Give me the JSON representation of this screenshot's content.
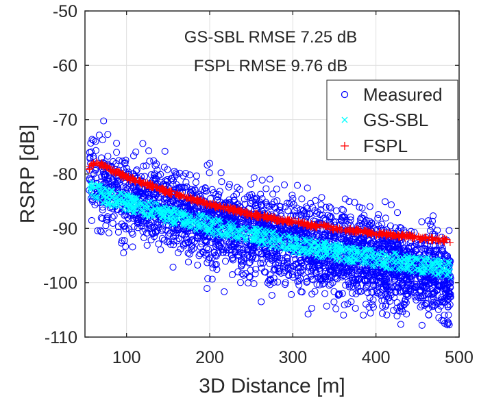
{
  "chart_data": {
    "type": "scatter",
    "title": "",
    "xlabel": "3D Distance [m]",
    "ylabel": "RSRP [dB]",
    "xlim": [
      50,
      500
    ],
    "ylim": [
      -110,
      -50
    ],
    "xticks": [
      100,
      200,
      300,
      400,
      500
    ],
    "yticks": [
      -110,
      -100,
      -90,
      -80,
      -70,
      -60,
      -50
    ],
    "xtick_labels": [
      "100",
      "200",
      "300",
      "400",
      "500"
    ],
    "ytick_labels": [
      "-110",
      "-100",
      "-90",
      "-80",
      "-70",
      "-60",
      "-50"
    ],
    "grid": true,
    "legend_position": "top-right",
    "annotations": [
      "GS-SBL RMSE 7.25 dB",
      "FSPL RMSE 9.76 dB"
    ],
    "series": [
      {
        "name": "Measured",
        "marker": "circle",
        "color": "#0000ff",
        "point_count": 3000,
        "trend": {
          "x": [
            55,
            100,
            200,
            300,
            400,
            490
          ],
          "mean_y": [
            -80.5,
            -84.5,
            -88.5,
            -92.5,
            -96,
            -99
          ],
          "spread_db": 8.5
        }
      },
      {
        "name": "GS-SBL",
        "marker": "x",
        "color": "#00ffff",
        "x": [
          55,
          80,
          100,
          150,
          200,
          250,
          300,
          350,
          400,
          450,
          490
        ],
        "y": [
          -82.8,
          -84.3,
          -85.3,
          -87.5,
          -89.5,
          -91.3,
          -92.9,
          -94.3,
          -95.6,
          -96.7,
          -97.6
        ]
      },
      {
        "name": "FSPL",
        "marker": "+",
        "color": "#ff0000",
        "x": [
          55,
          60,
          65,
          70,
          80,
          100,
          150,
          200,
          250,
          300,
          350,
          400,
          450,
          490
        ],
        "y": [
          -78.8,
          -78.3,
          -78.1,
          -78.2,
          -79.1,
          -80.6,
          -83.3,
          -85.6,
          -87.4,
          -88.9,
          -90.0,
          -90.9,
          -91.7,
          -92.3
        ]
      }
    ]
  }
}
